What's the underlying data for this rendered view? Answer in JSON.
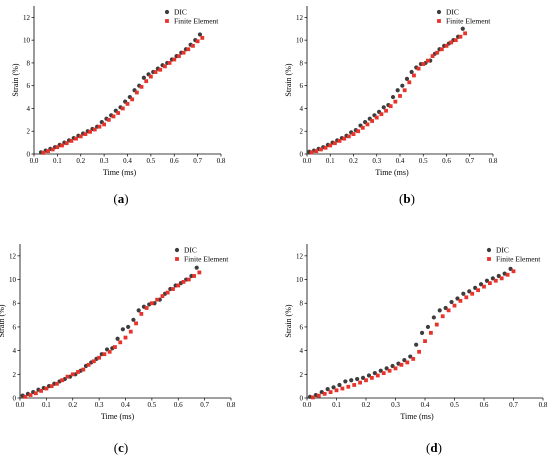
{
  "colors": {
    "dic": "#3d3d3d",
    "fe": "#e8332b",
    "axis": "#000000"
  },
  "chart_data": [
    {
      "type": "scatter",
      "caption_open": "(",
      "caption_letter": "a",
      "caption_close": ")",
      "xlabel": "Time (ms)",
      "ylabel": "Strain (%)",
      "xlim": [
        0,
        0.8
      ],
      "ylim": [
        0,
        13
      ],
      "xticks": [
        "0.0",
        "0.1",
        "0.2",
        "0.3",
        "0.4",
        "0.5",
        "0.6",
        "0.7",
        "0.8"
      ],
      "yticks": [
        "0",
        "2",
        "4",
        "6",
        "8",
        "10",
        "12"
      ],
      "legend_position": "top-right",
      "series": [
        {
          "name": "DIC",
          "marker": "circle",
          "x": [
            0.03,
            0.05,
            0.07,
            0.09,
            0.11,
            0.13,
            0.15,
            0.17,
            0.19,
            0.21,
            0.23,
            0.25,
            0.27,
            0.29,
            0.31,
            0.33,
            0.35,
            0.37,
            0.39,
            0.41,
            0.43,
            0.45,
            0.47,
            0.49,
            0.51,
            0.53,
            0.55,
            0.57,
            0.59,
            0.61,
            0.63,
            0.65,
            0.67,
            0.69,
            0.71
          ],
          "y": [
            0.15,
            0.3,
            0.45,
            0.6,
            0.8,
            1.0,
            1.2,
            1.4,
            1.6,
            1.8,
            2.0,
            2.2,
            2.4,
            2.8,
            3.1,
            3.4,
            3.8,
            4.1,
            4.6,
            5.0,
            5.6,
            6.0,
            6.7,
            7.0,
            7.2,
            7.5,
            7.8,
            8.0,
            8.3,
            8.6,
            8.9,
            9.2,
            9.6,
            10.0,
            10.5
          ]
        },
        {
          "name": "Finite Element",
          "marker": "square",
          "x": [
            0.04,
            0.06,
            0.08,
            0.1,
            0.12,
            0.14,
            0.16,
            0.18,
            0.2,
            0.22,
            0.24,
            0.26,
            0.28,
            0.3,
            0.32,
            0.34,
            0.36,
            0.38,
            0.4,
            0.42,
            0.44,
            0.46,
            0.48,
            0.5,
            0.52,
            0.54,
            0.56,
            0.58,
            0.6,
            0.62,
            0.64,
            0.66,
            0.68,
            0.7,
            0.72
          ],
          "y": [
            0.1,
            0.25,
            0.4,
            0.6,
            0.75,
            0.95,
            1.15,
            1.35,
            1.55,
            1.75,
            1.95,
            2.15,
            2.4,
            2.6,
            3.0,
            3.3,
            3.6,
            4.0,
            4.4,
            4.8,
            5.4,
            5.9,
            6.4,
            6.8,
            7.2,
            7.4,
            7.7,
            8.0,
            8.3,
            8.6,
            8.9,
            9.2,
            9.5,
            9.9,
            10.2
          ]
        }
      ]
    },
    {
      "type": "scatter",
      "caption_open": "(",
      "caption_letter": "b",
      "caption_close": ")",
      "xlabel": "Time (ms)",
      "ylabel": "Strain (%)",
      "xlim": [
        0,
        0.8
      ],
      "ylim": [
        0,
        13
      ],
      "xticks": [
        "0.0",
        "0.1",
        "0.2",
        "0.3",
        "0.4",
        "0.5",
        "0.6",
        "0.7",
        "0.8"
      ],
      "yticks": [
        "0",
        "2",
        "4",
        "6",
        "8",
        "10",
        "12"
      ],
      "legend_position": "top-right",
      "series": [
        {
          "name": "DIC",
          "marker": "circle",
          "x": [
            0.01,
            0.03,
            0.05,
            0.07,
            0.09,
            0.11,
            0.13,
            0.15,
            0.17,
            0.19,
            0.21,
            0.23,
            0.25,
            0.27,
            0.29,
            0.31,
            0.33,
            0.35,
            0.37,
            0.39,
            0.41,
            0.43,
            0.45,
            0.47,
            0.49,
            0.51,
            0.53,
            0.55,
            0.57,
            0.59,
            0.61,
            0.63,
            0.65,
            0.67
          ],
          "y": [
            0.2,
            0.3,
            0.45,
            0.6,
            0.8,
            1.0,
            1.2,
            1.4,
            1.6,
            1.9,
            2.1,
            2.5,
            2.8,
            3.1,
            3.4,
            3.7,
            4.1,
            4.3,
            5.0,
            5.6,
            6.0,
            6.6,
            7.2,
            7.6,
            7.9,
            8.0,
            8.2,
            8.8,
            9.2,
            9.5,
            9.7,
            10.0,
            10.3,
            11.0
          ]
        },
        {
          "name": "Finite Element",
          "marker": "square",
          "x": [
            0.02,
            0.04,
            0.06,
            0.08,
            0.1,
            0.12,
            0.14,
            0.16,
            0.18,
            0.2,
            0.22,
            0.24,
            0.26,
            0.28,
            0.3,
            0.32,
            0.34,
            0.36,
            0.38,
            0.4,
            0.42,
            0.44,
            0.46,
            0.48,
            0.5,
            0.52,
            0.54,
            0.56,
            0.58,
            0.6,
            0.62,
            0.64,
            0.66,
            0.68
          ],
          "y": [
            0.15,
            0.25,
            0.4,
            0.55,
            0.75,
            0.95,
            1.15,
            1.35,
            1.55,
            1.75,
            2.0,
            2.3,
            2.6,
            2.9,
            3.2,
            3.5,
            3.8,
            4.2,
            4.6,
            5.1,
            5.6,
            6.3,
            6.9,
            7.5,
            7.9,
            8.2,
            8.6,
            8.9,
            9.2,
            9.5,
            9.8,
            10.0,
            10.3,
            10.6
          ]
        }
      ]
    },
    {
      "type": "scatter",
      "caption_open": "(",
      "caption_letter": "c",
      "caption_close": ")",
      "xlabel": "Time (ms)",
      "ylabel": "Strain (%)",
      "xlim": [
        0,
        0.8
      ],
      "ylim": [
        0,
        13
      ],
      "xticks": [
        "0.0",
        "0.1",
        "0.2",
        "0.3",
        "0.4",
        "0.5",
        "0.6",
        "0.7",
        "0.8"
      ],
      "yticks": [
        "0",
        "2",
        "4",
        "6",
        "8",
        "10",
        "12"
      ],
      "legend_position": "top-right",
      "series": [
        {
          "name": "DIC",
          "marker": "circle",
          "x": [
            0.01,
            0.03,
            0.05,
            0.07,
            0.09,
            0.11,
            0.13,
            0.15,
            0.17,
            0.19,
            0.21,
            0.23,
            0.25,
            0.27,
            0.29,
            0.31,
            0.33,
            0.35,
            0.37,
            0.39,
            0.41,
            0.43,
            0.45,
            0.47,
            0.49,
            0.51,
            0.53,
            0.55,
            0.57,
            0.59,
            0.61,
            0.63,
            0.65,
            0.67
          ],
          "y": [
            0.2,
            0.35,
            0.5,
            0.7,
            0.85,
            1.0,
            1.2,
            1.4,
            1.6,
            1.8,
            2.0,
            2.3,
            2.7,
            3.0,
            3.3,
            3.7,
            4.1,
            4.2,
            5.0,
            5.8,
            6.0,
            6.6,
            7.4,
            7.7,
            7.9,
            8.0,
            8.3,
            8.8,
            9.2,
            9.5,
            9.7,
            10.0,
            10.3,
            11.0
          ]
        },
        {
          "name": "Finite Element",
          "marker": "square",
          "x": [
            0.02,
            0.04,
            0.06,
            0.08,
            0.1,
            0.12,
            0.14,
            0.16,
            0.18,
            0.2,
            0.22,
            0.24,
            0.26,
            0.28,
            0.3,
            0.32,
            0.34,
            0.36,
            0.38,
            0.4,
            0.42,
            0.44,
            0.46,
            0.48,
            0.5,
            0.52,
            0.54,
            0.56,
            0.58,
            0.6,
            0.62,
            0.64,
            0.66,
            0.68
          ],
          "y": [
            0.1,
            0.25,
            0.4,
            0.6,
            0.8,
            1.0,
            1.2,
            1.5,
            1.8,
            2.0,
            2.2,
            2.4,
            2.8,
            3.1,
            3.4,
            3.7,
            3.9,
            4.3,
            4.7,
            5.1,
            5.6,
            6.3,
            7.1,
            7.6,
            8.0,
            8.3,
            8.6,
            8.9,
            9.2,
            9.5,
            9.8,
            10.0,
            10.3,
            10.6
          ]
        }
      ]
    },
    {
      "type": "scatter",
      "caption_open": "(",
      "caption_letter": "d",
      "caption_close": ")",
      "xlabel": "Time (ms)",
      "ylabel": "Strain (%)",
      "xlim": [
        0,
        0.8
      ],
      "ylim": [
        0,
        13
      ],
      "xticks": [
        "0.0",
        "0.1",
        "0.2",
        "0.3",
        "0.4",
        "0.5",
        "0.6",
        "0.7",
        "0.8"
      ],
      "yticks": [
        "0",
        "2",
        "4",
        "6",
        "8",
        "10",
        "12"
      ],
      "legend_position": "top-right",
      "series": [
        {
          "name": "DIC",
          "marker": "circle",
          "x": [
            0.01,
            0.03,
            0.05,
            0.07,
            0.09,
            0.11,
            0.13,
            0.15,
            0.17,
            0.19,
            0.21,
            0.23,
            0.25,
            0.27,
            0.29,
            0.31,
            0.33,
            0.35,
            0.37,
            0.39,
            0.41,
            0.43,
            0.45,
            0.47,
            0.49,
            0.51,
            0.53,
            0.55,
            0.57,
            0.59,
            0.61,
            0.63,
            0.65,
            0.67,
            0.69
          ],
          "y": [
            0.1,
            0.25,
            0.5,
            0.75,
            0.9,
            1.1,
            1.4,
            1.5,
            1.6,
            1.7,
            1.9,
            2.1,
            2.3,
            2.5,
            2.7,
            2.9,
            3.2,
            3.5,
            4.5,
            5.5,
            6.0,
            6.8,
            7.4,
            7.6,
            8.1,
            8.4,
            8.8,
            9.0,
            9.3,
            9.6,
            9.9,
            10.1,
            10.3,
            10.5,
            10.9
          ]
        },
        {
          "name": "Finite Element",
          "marker": "square",
          "x": [
            0.02,
            0.04,
            0.06,
            0.08,
            0.1,
            0.12,
            0.14,
            0.16,
            0.18,
            0.2,
            0.22,
            0.24,
            0.26,
            0.28,
            0.3,
            0.32,
            0.34,
            0.36,
            0.38,
            0.4,
            0.42,
            0.44,
            0.46,
            0.48,
            0.5,
            0.52,
            0.54,
            0.56,
            0.58,
            0.6,
            0.62,
            0.64,
            0.66,
            0.68,
            0.7
          ],
          "y": [
            0.05,
            0.2,
            0.35,
            0.5,
            0.65,
            0.8,
            0.95,
            1.1,
            1.3,
            1.5,
            1.7,
            1.9,
            2.1,
            2.3,
            2.5,
            2.8,
            3.0,
            3.3,
            3.9,
            4.8,
            5.5,
            6.2,
            6.9,
            7.4,
            7.8,
            8.2,
            8.5,
            8.8,
            9.1,
            9.4,
            9.7,
            9.9,
            10.1,
            10.4,
            10.7
          ]
        }
      ]
    }
  ]
}
